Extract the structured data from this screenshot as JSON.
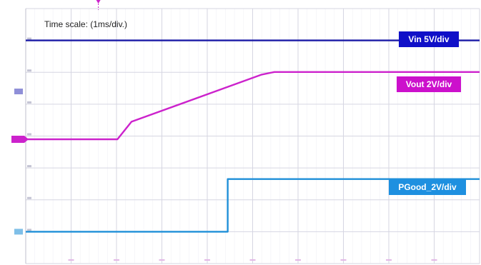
{
  "caption": "Time scale: (1ms/div.)",
  "chart_data": {
    "type": "line",
    "title": "",
    "xlabel": "Time scale: (1ms/div.)",
    "ylabel": "",
    "grid": true,
    "time_per_div_ms": 1,
    "xlim": [
      0,
      10
    ],
    "ylim": [
      -4,
      4
    ],
    "series": [
      {
        "name": "Vin 5V/div",
        "color": "#1a1aa6",
        "x": [
          0,
          10
        ],
        "y": [
          3,
          3
        ]
      },
      {
        "name": "Vout 2V/div",
        "color": "#cc22cc",
        "x": [
          0,
          2.02,
          2.33,
          5.2,
          5.48,
          10
        ],
        "y": [
          -0.1,
          -0.1,
          0.45,
          1.93,
          2.01,
          2.01
        ]
      },
      {
        "name": "PGood_2V/div",
        "color": "#1f8fd8",
        "x": [
          0,
          4.45,
          4.45,
          10
        ],
        "y": [
          -3.0,
          -3.0,
          -1.35,
          -1.35
        ]
      }
    ],
    "labels": [
      {
        "text": "Vin 5V/div",
        "color": "#1010c8"
      },
      {
        "text": "Vout 2V/div",
        "color": "#cc10cc"
      },
      {
        "text": "PGood_2V/div",
        "color": "#1e90e0"
      }
    ]
  }
}
